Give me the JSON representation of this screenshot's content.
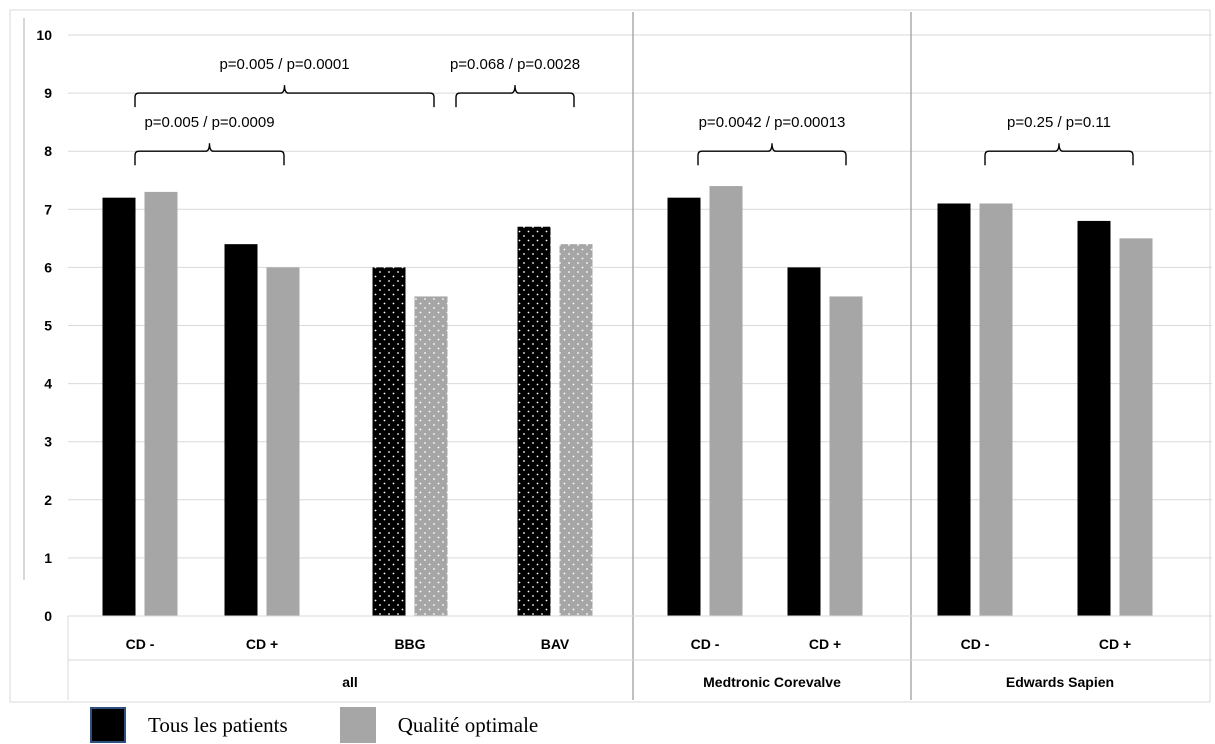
{
  "colors": {
    "series1": "#000000",
    "series2": "#a6a6a6",
    "grid": "#d9d9d9",
    "divider": "#a6a6a6",
    "legend_border": "#2f4f7f"
  },
  "legend": {
    "items": [
      {
        "label": "Tous les patients",
        "color": "#000000"
      },
      {
        "label": "Qualité optimale",
        "color": "#a6a6a6"
      }
    ]
  },
  "chart_data": {
    "type": "bar",
    "ylim": [
      0,
      10
    ],
    "yticks": [
      "0",
      "1",
      "2",
      "3",
      "4",
      "5",
      "6",
      "7",
      "8",
      "9",
      "10"
    ],
    "grid": true,
    "legend_position": "bottom-left",
    "groups": [
      {
        "label": "all",
        "categories": [
          "CD -",
          "CD +",
          "BBG",
          "BAV"
        ]
      },
      {
        "label": "Medtronic Corevalve",
        "categories": [
          "CD -",
          "CD +"
        ]
      },
      {
        "label": "Edwards Sapien",
        "categories": [
          "CD -",
          "CD +"
        ]
      }
    ],
    "categories": [
      "CD -",
      "CD +",
      "BBG",
      "BAV",
      "CD -",
      "CD +",
      "CD -",
      "CD +"
    ],
    "patterned": [
      false,
      false,
      true,
      true,
      false,
      false,
      false,
      false
    ],
    "series": [
      {
        "name": "Tous les patients",
        "values": [
          7.2,
          6.4,
          6.0,
          6.7,
          7.2,
          6.0,
          7.1,
          6.8
        ]
      },
      {
        "name": "Qualité optimale",
        "values": [
          7.3,
          6.0,
          5.5,
          6.4,
          7.4,
          5.5,
          7.1,
          6.5
        ]
      }
    ],
    "annotations": [
      {
        "text": "p=0.005 / p=0.0009",
        "from": 0,
        "to": 1,
        "level": 8.0
      },
      {
        "text": "p=0.005 / p=0.0001",
        "from": 0,
        "to": 2,
        "level": 9.0
      },
      {
        "text": "p=0.068 / p=0.0028",
        "from": 2,
        "to": 3,
        "level": 9.0
      },
      {
        "text": "p=0.0042 / p=0.00013",
        "from": 4,
        "to": 5,
        "level": 8.0
      },
      {
        "text": "p=0.25 / p=0.11",
        "from": 6,
        "to": 7,
        "level": 8.0
      }
    ]
  }
}
